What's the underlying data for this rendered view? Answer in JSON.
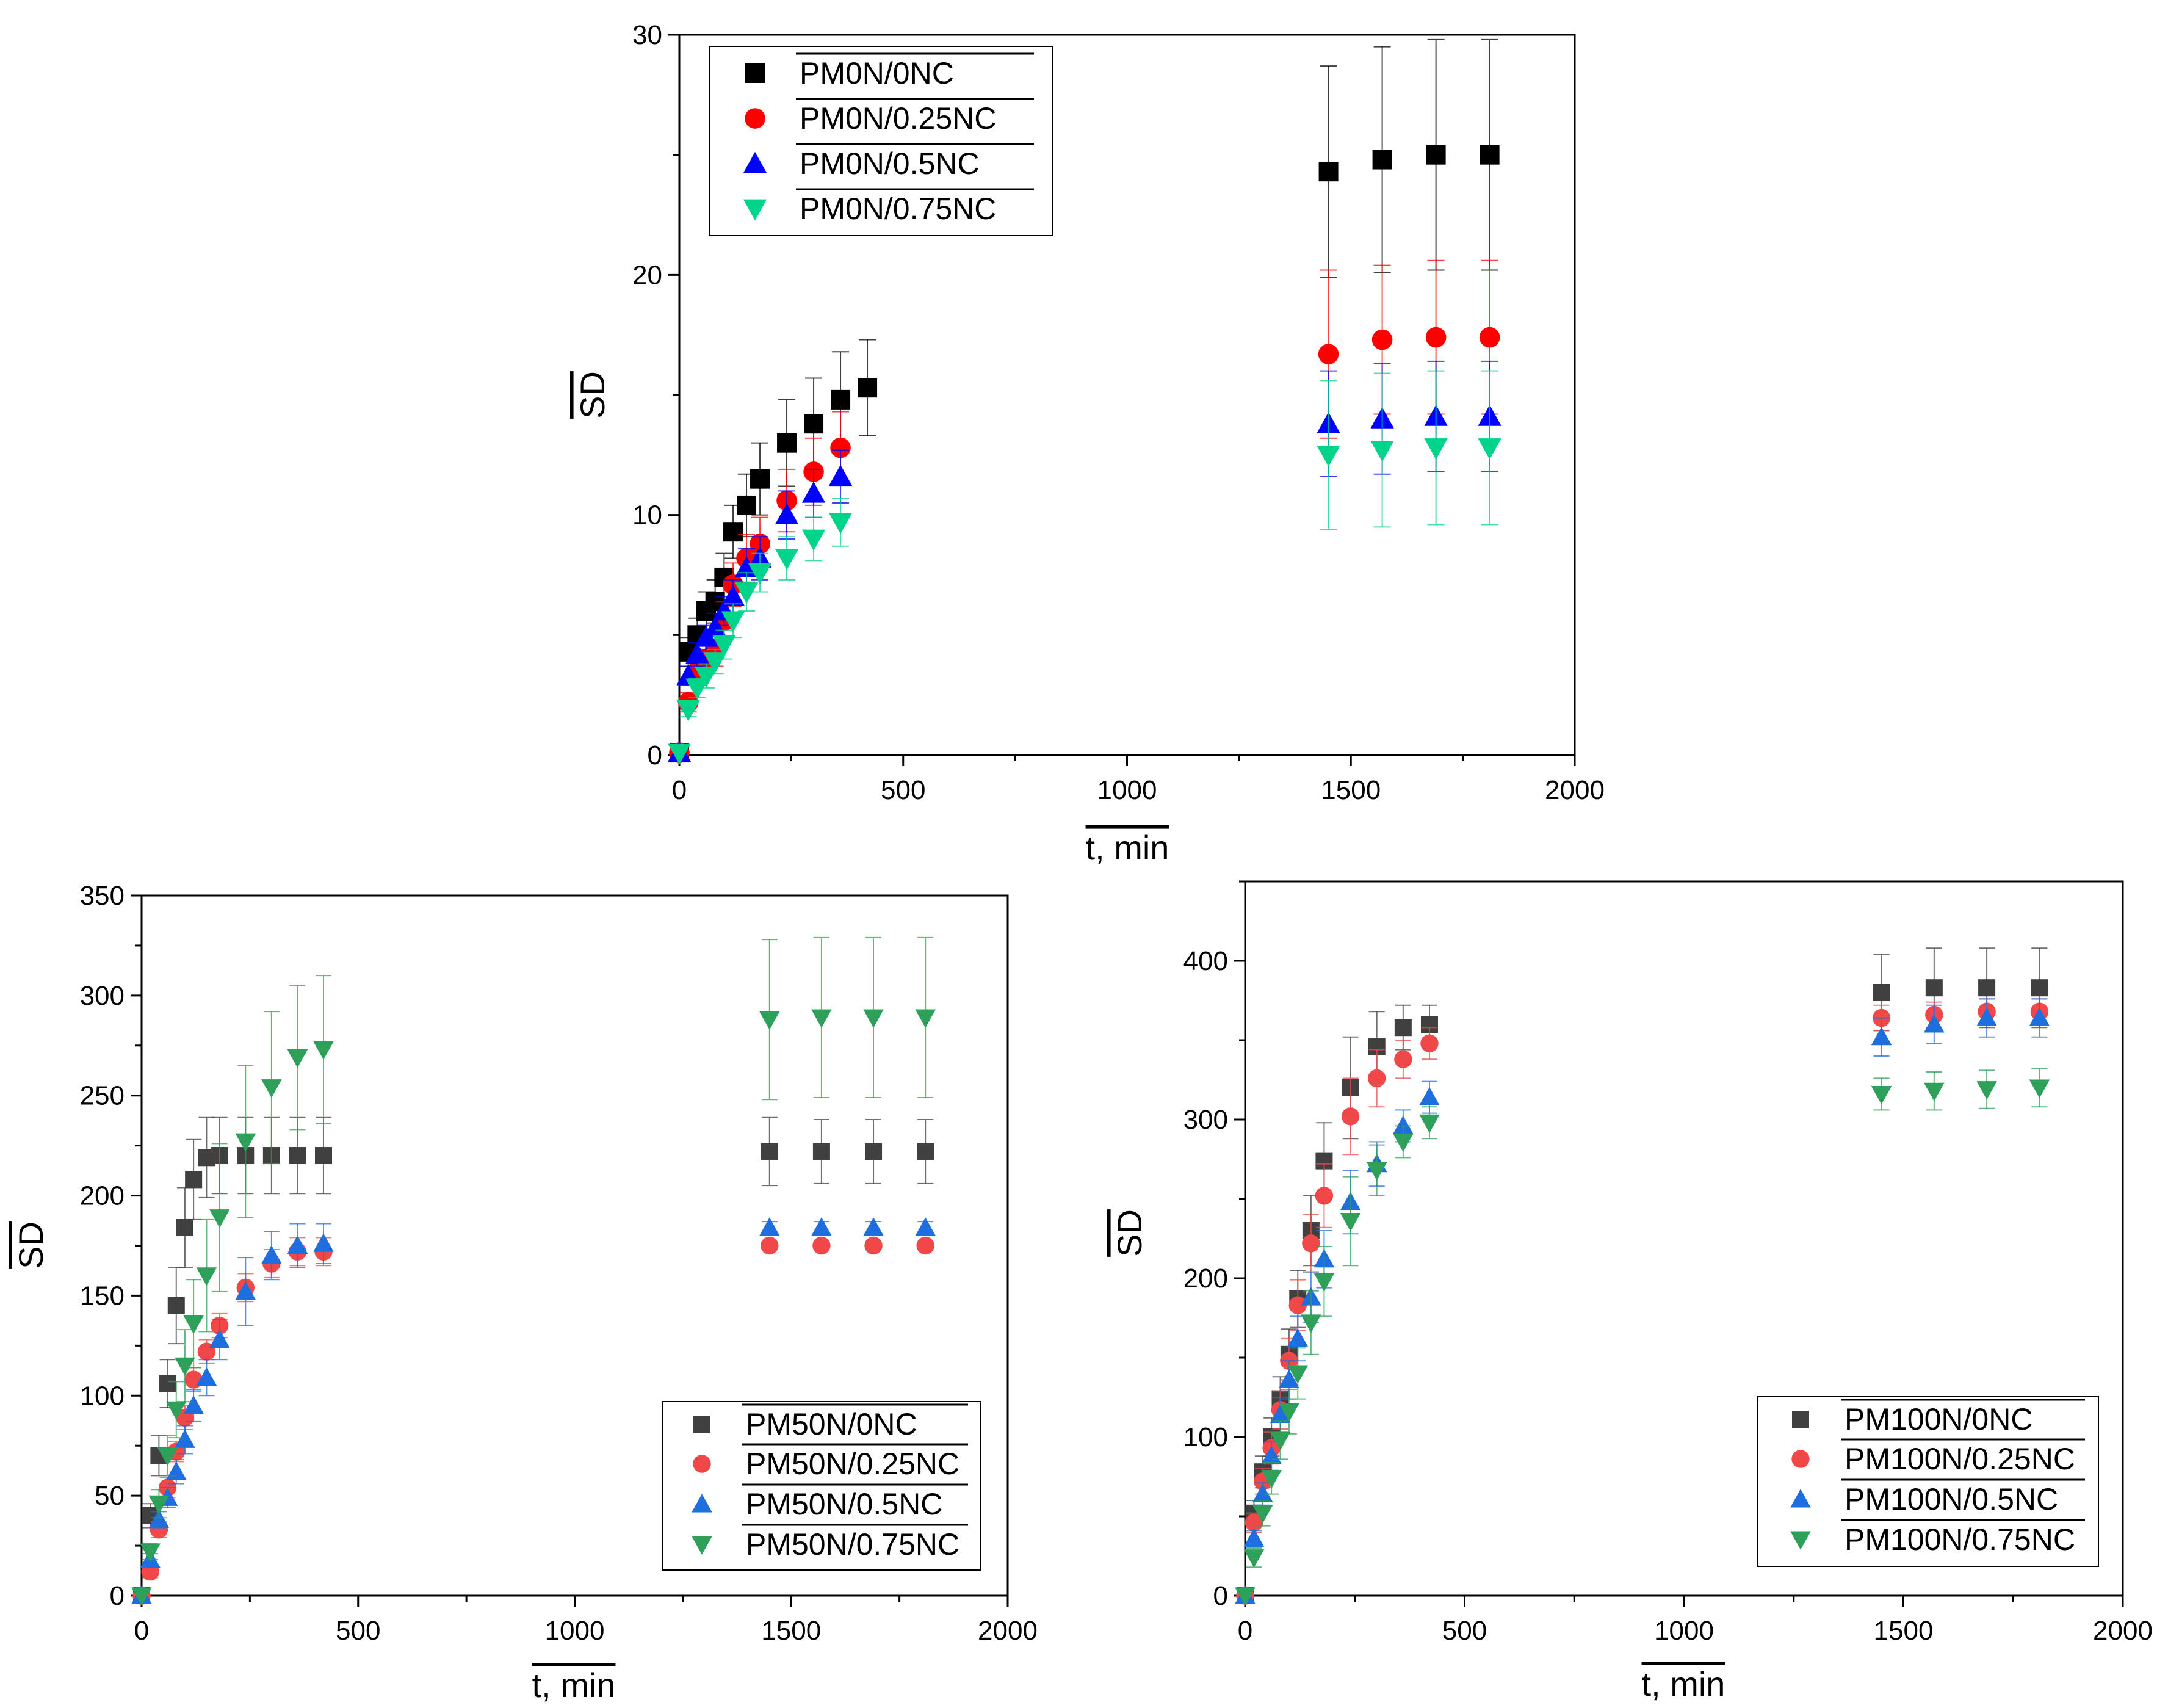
{
  "chart_data": [
    {
      "id": "top",
      "type": "scatter",
      "title": "",
      "xlabel": "t, min",
      "ylabel": "SD",
      "xlim": [
        0,
        2000
      ],
      "ylim": [
        0,
        30
      ],
      "x_ticks": [
        0,
        500,
        1000,
        1500,
        2000
      ],
      "y_ticks": [
        0,
        10,
        20,
        30
      ],
      "x_tick_labels": [
        "0",
        "500",
        "1000",
        "1500",
        "2000"
      ],
      "y_tick_labels": [
        "0",
        "10",
        "20",
        "30"
      ],
      "legend": "top-left",
      "grid": false,
      "series": [
        {
          "name": "PM0N/0NC",
          "marker": "square",
          "color": "#000000",
          "x": [
            0,
            20,
            40,
            60,
            80,
            100,
            120,
            150,
            180,
            240,
            300,
            360,
            420,
            1450,
            1570,
            1690,
            1810
          ],
          "y": [
            0.1,
            4.3,
            5.0,
            6.0,
            6.4,
            7.4,
            9.3,
            10.4,
            11.5,
            13.0,
            13.8,
            14.8,
            15.3,
            24.3,
            24.8,
            25.0,
            25.0
          ],
          "err": [
            0,
            0.6,
            0.7,
            0.8,
            0.9,
            1.0,
            1.1,
            1.3,
            1.5,
            1.8,
            1.9,
            2.0,
            2.0,
            4.4,
            4.7,
            4.8,
            4.8
          ]
        },
        {
          "name": "PM0N/0.25NC",
          "marker": "circle",
          "color": "#ff0000",
          "x": [
            0,
            20,
            40,
            60,
            80,
            100,
            120,
            150,
            180,
            240,
            300,
            360,
            1450,
            1570,
            1690,
            1810
          ],
          "y": [
            0.1,
            2.2,
            3.5,
            4.0,
            4.4,
            5.6,
            7.1,
            8.2,
            8.8,
            10.6,
            11.8,
            12.8,
            16.7,
            17.3,
            17.4,
            17.4
          ],
          "err": [
            0,
            0.4,
            0.5,
            0.6,
            0.7,
            0.8,
            0.9,
            1.0,
            1.1,
            1.3,
            1.4,
            1.5,
            3.5,
            3.1,
            3.2,
            3.2
          ]
        },
        {
          "name": "PM0N/0.5NC",
          "marker": "triangle-up",
          "color": "#0000ff",
          "x": [
            0,
            20,
            40,
            60,
            80,
            100,
            120,
            150,
            180,
            240,
            300,
            360,
            1450,
            1570,
            1690,
            1810
          ],
          "y": [
            0.1,
            3.3,
            4.2,
            4.9,
            5.3,
            6.0,
            6.6,
            7.8,
            8.2,
            10.0,
            10.9,
            11.6,
            13.8,
            14.0,
            14.1,
            14.1
          ],
          "err": [
            0,
            0.4,
            0.5,
            0.5,
            0.6,
            0.6,
            0.7,
            0.8,
            0.9,
            1.0,
            1.0,
            1.1,
            2.2,
            2.3,
            2.3,
            2.3
          ]
        },
        {
          "name": "PM0N/0.75NC",
          "marker": "triangle-down",
          "color": "#00d38a",
          "x": [
            0,
            20,
            40,
            60,
            80,
            100,
            120,
            150,
            180,
            240,
            300,
            360,
            1450,
            1570,
            1690,
            1810
          ],
          "y": [
            0.1,
            1.9,
            2.8,
            3.3,
            3.9,
            4.6,
            5.6,
            6.8,
            7.6,
            8.2,
            9.0,
            9.7,
            12.5,
            12.7,
            12.8,
            12.8
          ],
          "err": [
            0,
            0.3,
            0.4,
            0.5,
            0.5,
            0.6,
            0.7,
            0.8,
            0.8,
            0.9,
            0.9,
            1.0,
            3.1,
            3.2,
            3.2,
            3.2
          ]
        }
      ]
    },
    {
      "id": "bottom-left",
      "type": "scatter",
      "title": "",
      "xlabel": "t, min",
      "ylabel": "SD",
      "xlim": [
        0,
        2000
      ],
      "ylim": [
        0,
        350
      ],
      "x_ticks": [
        0,
        500,
        1000,
        1500,
        2000
      ],
      "y_ticks": [
        0,
        50,
        100,
        150,
        200,
        250,
        300,
        350
      ],
      "x_tick_labels": [
        "0",
        "500",
        "1000",
        "1500",
        "2000"
      ],
      "y_tick_labels": [
        "0",
        "50",
        "100",
        "150",
        "200",
        "250",
        "300",
        "350"
      ],
      "legend": "bottom-right",
      "grid": false,
      "series": [
        {
          "name": "PM50N/0NC",
          "marker": "square",
          "color": "#404040",
          "x": [
            0,
            20,
            40,
            60,
            80,
            100,
            120,
            150,
            180,
            240,
            300,
            360,
            420,
            1450,
            1570,
            1690,
            1810
          ],
          "y": [
            0,
            40,
            70,
            106,
            145,
            184,
            208,
            219,
            220,
            220,
            220,
            220,
            220,
            222,
            222,
            222,
            222
          ],
          "err": [
            0,
            6,
            10,
            12,
            19,
            20,
            20,
            20,
            19,
            19,
            19,
            19,
            19,
            17,
            16,
            16,
            16
          ]
        },
        {
          "name": "PM50N/0.25NC",
          "marker": "circle",
          "color": "#f04848",
          "x": [
            0,
            20,
            40,
            60,
            80,
            100,
            120,
            150,
            180,
            240,
            300,
            360,
            420,
            1450,
            1570,
            1690,
            1810
          ],
          "y": [
            0,
            12,
            33,
            54,
            72,
            89,
            108,
            122,
            135,
            154,
            166,
            172,
            172,
            175,
            175,
            175,
            175
          ],
          "err": [
            0,
            3,
            4,
            5,
            5,
            6,
            6,
            6,
            6,
            7,
            7,
            7,
            7,
            2,
            2,
            2,
            2
          ]
        },
        {
          "name": "PM50N/0.5NC",
          "marker": "triangle-up",
          "color": "#1e6ee0",
          "x": [
            0,
            20,
            40,
            60,
            80,
            100,
            120,
            150,
            180,
            240,
            300,
            360,
            420,
            1450,
            1570,
            1690,
            1810
          ],
          "y": [
            0,
            18,
            38,
            49,
            62,
            78,
            95,
            109,
            128,
            152,
            170,
            175,
            176,
            184,
            184,
            184,
            184
          ],
          "err": [
            0,
            3,
            4,
            5,
            6,
            7,
            8,
            9,
            10,
            17,
            12,
            11,
            10,
            3,
            3,
            3,
            3
          ]
        },
        {
          "name": "PM50N/0.75NC",
          "marker": "triangle-down",
          "color": "#2ea05a",
          "x": [
            0,
            20,
            40,
            60,
            80,
            100,
            120,
            150,
            180,
            240,
            300,
            360,
            420,
            1450,
            1570,
            1690,
            1810
          ],
          "y": [
            0,
            22,
            46,
            70,
            93,
            115,
            136,
            160,
            189,
            227,
            254,
            269,
            273,
            288,
            289,
            289,
            289
          ],
          "err": [
            0,
            4,
            7,
            10,
            14,
            18,
            22,
            28,
            37,
            38,
            38,
            36,
            37,
            40,
            40,
            40,
            40
          ]
        }
      ]
    },
    {
      "id": "bottom-right",
      "type": "scatter",
      "title": "",
      "xlabel": "t, min",
      "ylabel": "SD",
      "xlim": [
        0,
        2000
      ],
      "ylim": [
        0,
        450
      ],
      "x_ticks": [
        0,
        500,
        1000,
        1500,
        2000
      ],
      "y_ticks": [
        0,
        100,
        200,
        300,
        400
      ],
      "x_tick_labels": [
        "0",
        "500",
        "1000",
        "1500",
        "2000"
      ],
      "y_tick_labels": [
        "0",
        "100",
        "200",
        "300",
        "400"
      ],
      "legend": "bottom-right",
      "grid": false,
      "series": [
        {
          "name": "PM100N/0NC",
          "marker": "square",
          "color": "#404040",
          "x": [
            0,
            20,
            40,
            60,
            80,
            100,
            120,
            150,
            180,
            240,
            300,
            360,
            420,
            1450,
            1570,
            1690,
            1810
          ],
          "y": [
            0,
            52,
            78,
            100,
            124,
            152,
            187,
            230,
            274,
            320,
            346,
            358,
            360,
            380,
            383,
            383,
            383
          ],
          "err": [
            0,
            8,
            10,
            12,
            14,
            16,
            18,
            22,
            24,
            32,
            22,
            14,
            12,
            24,
            25,
            25,
            25
          ]
        },
        {
          "name": "PM100N/0.25NC",
          "marker": "circle",
          "color": "#f04848",
          "x": [
            0,
            20,
            40,
            60,
            80,
            100,
            120,
            150,
            180,
            240,
            300,
            360,
            420,
            1450,
            1570,
            1690,
            1810
          ],
          "y": [
            0,
            46,
            72,
            93,
            117,
            148,
            183,
            222,
            252,
            302,
            326,
            338,
            348,
            364,
            366,
            368,
            368
          ],
          "err": [
            0,
            6,
            8,
            10,
            12,
            14,
            16,
            18,
            20,
            24,
            18,
            12,
            10,
            8,
            8,
            8,
            8
          ]
        },
        {
          "name": "PM100N/0.5NC",
          "marker": "triangle-up",
          "color": "#1e6ee0",
          "x": [
            0,
            20,
            40,
            60,
            80,
            100,
            120,
            150,
            180,
            240,
            300,
            360,
            420,
            1450,
            1570,
            1690,
            1810
          ],
          "y": [
            0,
            36,
            64,
            88,
            114,
            136,
            162,
            188,
            212,
            248,
            272,
            296,
            314,
            352,
            360,
            364,
            364
          ],
          "err": [
            0,
            5,
            7,
            9,
            11,
            12,
            14,
            16,
            18,
            20,
            14,
            10,
            10,
            12,
            12,
            12,
            12
          ]
        },
        {
          "name": "PM100N/0.75NC",
          "marker": "triangle-down",
          "color": "#2ea05a",
          "x": [
            0,
            20,
            40,
            60,
            80,
            100,
            120,
            150,
            180,
            240,
            300,
            360,
            420,
            1450,
            1570,
            1690,
            1810
          ],
          "y": [
            0,
            24,
            52,
            74,
            98,
            116,
            140,
            172,
            198,
            236,
            268,
            286,
            298,
            316,
            318,
            319,
            320
          ],
          "err": [
            0,
            6,
            8,
            10,
            12,
            14,
            16,
            20,
            22,
            28,
            16,
            10,
            10,
            10,
            12,
            12,
            12
          ]
        }
      ]
    }
  ]
}
